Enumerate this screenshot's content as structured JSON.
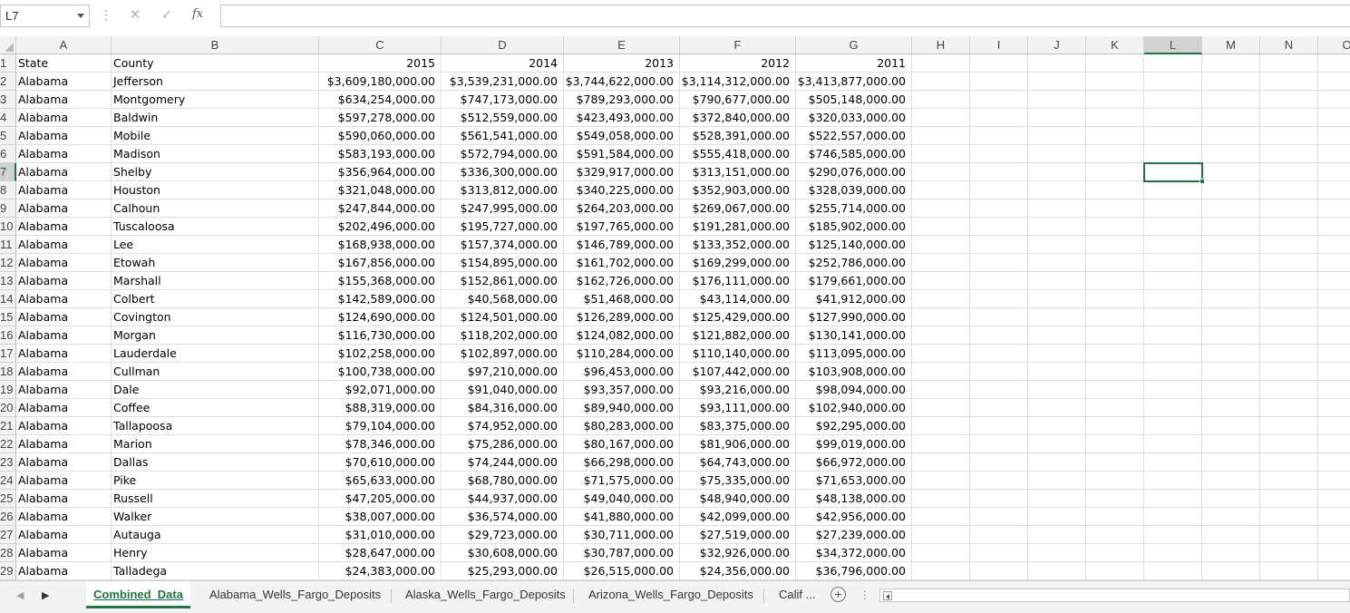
{
  "formula_bar": {
    "name_box": "L7",
    "function_symbol": "fx",
    "formula": ""
  },
  "columns": [
    "A",
    "B",
    "C",
    "D",
    "E",
    "F",
    "G",
    "H",
    "I",
    "J",
    "K",
    "L",
    "M",
    "N",
    "O"
  ],
  "selected_column": "L",
  "selected_row": "7",
  "rows": [
    {
      "n": "1",
      "cells": [
        "State",
        "County",
        "2015",
        "2014",
        "2013",
        "2012",
        "2011"
      ]
    },
    {
      "n": "2",
      "cells": [
        "Alabama",
        "Jefferson",
        "$3,609,180,000.00",
        "$3,539,231,000.00",
        "$3,744,622,000.00",
        "$3,114,312,000.00",
        "$3,413,877,000.00"
      ]
    },
    {
      "n": "3",
      "cells": [
        "Alabama",
        "Montgomery",
        "$634,254,000.00",
        "$747,173,000.00",
        "$789,293,000.00",
        "$790,677,000.00",
        "$505,148,000.00"
      ]
    },
    {
      "n": "4",
      "cells": [
        "Alabama",
        "Baldwin",
        "$597,278,000.00",
        "$512,559,000.00",
        "$423,493,000.00",
        "$372,840,000.00",
        "$320,033,000.00"
      ]
    },
    {
      "n": "5",
      "cells": [
        "Alabama",
        "Mobile",
        "$590,060,000.00",
        "$561,541,000.00",
        "$549,058,000.00",
        "$528,391,000.00",
        "$522,557,000.00"
      ]
    },
    {
      "n": "6",
      "cells": [
        "Alabama",
        "Madison",
        "$583,193,000.00",
        "$572,794,000.00",
        "$591,584,000.00",
        "$555,418,000.00",
        "$746,585,000.00"
      ]
    },
    {
      "n": "7",
      "cells": [
        "Alabama",
        "Shelby",
        "$356,964,000.00",
        "$336,300,000.00",
        "$329,917,000.00",
        "$313,151,000.00",
        "$290,076,000.00"
      ]
    },
    {
      "n": "8",
      "cells": [
        "Alabama",
        "Houston",
        "$321,048,000.00",
        "$313,812,000.00",
        "$340,225,000.00",
        "$352,903,000.00",
        "$328,039,000.00"
      ]
    },
    {
      "n": "9",
      "cells": [
        "Alabama",
        "Calhoun",
        "$247,844,000.00",
        "$247,995,000.00",
        "$264,203,000.00",
        "$269,067,000.00",
        "$255,714,000.00"
      ]
    },
    {
      "n": "10",
      "cells": [
        "Alabama",
        "Tuscaloosa",
        "$202,496,000.00",
        "$195,727,000.00",
        "$197,765,000.00",
        "$191,281,000.00",
        "$185,902,000.00"
      ]
    },
    {
      "n": "11",
      "cells": [
        "Alabama",
        "Lee",
        "$168,938,000.00",
        "$157,374,000.00",
        "$146,789,000.00",
        "$133,352,000.00",
        "$125,140,000.00"
      ]
    },
    {
      "n": "12",
      "cells": [
        "Alabama",
        "Etowah",
        "$167,856,000.00",
        "$154,895,000.00",
        "$161,702,000.00",
        "$169,299,000.00",
        "$252,786,000.00"
      ]
    },
    {
      "n": "13",
      "cells": [
        "Alabama",
        "Marshall",
        "$155,368,000.00",
        "$152,861,000.00",
        "$162,726,000.00",
        "$176,111,000.00",
        "$179,661,000.00"
      ]
    },
    {
      "n": "14",
      "cells": [
        "Alabama",
        "Colbert",
        "$142,589,000.00",
        "$40,568,000.00",
        "$51,468,000.00",
        "$43,114,000.00",
        "$41,912,000.00"
      ]
    },
    {
      "n": "15",
      "cells": [
        "Alabama",
        "Covington",
        "$124,690,000.00",
        "$124,501,000.00",
        "$126,289,000.00",
        "$125,429,000.00",
        "$127,990,000.00"
      ]
    },
    {
      "n": "16",
      "cells": [
        "Alabama",
        "Morgan",
        "$116,730,000.00",
        "$118,202,000.00",
        "$124,082,000.00",
        "$121,882,000.00",
        "$130,141,000.00"
      ]
    },
    {
      "n": "17",
      "cells": [
        "Alabama",
        "Lauderdale",
        "$102,258,000.00",
        "$102,897,000.00",
        "$110,284,000.00",
        "$110,140,000.00",
        "$113,095,000.00"
      ]
    },
    {
      "n": "18",
      "cells": [
        "Alabama",
        "Cullman",
        "$100,738,000.00",
        "$97,210,000.00",
        "$96,453,000.00",
        "$107,442,000.00",
        "$103,908,000.00"
      ]
    },
    {
      "n": "19",
      "cells": [
        "Alabama",
        "Dale",
        "$92,071,000.00",
        "$91,040,000.00",
        "$93,357,000.00",
        "$93,216,000.00",
        "$98,094,000.00"
      ]
    },
    {
      "n": "20",
      "cells": [
        "Alabama",
        "Coffee",
        "$88,319,000.00",
        "$84,316,000.00",
        "$89,940,000.00",
        "$93,111,000.00",
        "$102,940,000.00"
      ]
    },
    {
      "n": "21",
      "cells": [
        "Alabama",
        "Tallapoosa",
        "$79,104,000.00",
        "$74,952,000.00",
        "$80,283,000.00",
        "$83,375,000.00",
        "$92,295,000.00"
      ]
    },
    {
      "n": "22",
      "cells": [
        "Alabama",
        "Marion",
        "$78,346,000.00",
        "$75,286,000.00",
        "$80,167,000.00",
        "$81,906,000.00",
        "$99,019,000.00"
      ]
    },
    {
      "n": "23",
      "cells": [
        "Alabama",
        "Dallas",
        "$70,610,000.00",
        "$74,244,000.00",
        "$66,298,000.00",
        "$64,743,000.00",
        "$66,972,000.00"
      ]
    },
    {
      "n": "24",
      "cells": [
        "Alabama",
        "Pike",
        "$65,633,000.00",
        "$68,780,000.00",
        "$71,575,000.00",
        "$75,335,000.00",
        "$71,653,000.00"
      ]
    },
    {
      "n": "25",
      "cells": [
        "Alabama",
        "Russell",
        "$47,205,000.00",
        "$44,937,000.00",
        "$49,040,000.00",
        "$48,940,000.00",
        "$48,138,000.00"
      ]
    },
    {
      "n": "26",
      "cells": [
        "Alabama",
        "Walker",
        "$38,007,000.00",
        "$36,574,000.00",
        "$41,880,000.00",
        "$42,099,000.00",
        "$42,956,000.00"
      ]
    },
    {
      "n": "27",
      "cells": [
        "Alabama",
        "Autauga",
        "$31,010,000.00",
        "$29,723,000.00",
        "$30,711,000.00",
        "$27,519,000.00",
        "$27,239,000.00"
      ]
    },
    {
      "n": "28",
      "cells": [
        "Alabama",
        "Henry",
        "$28,647,000.00",
        "$30,608,000.00",
        "$30,787,000.00",
        "$32,926,000.00",
        "$34,372,000.00"
      ]
    },
    {
      "n": "29",
      "cells": [
        "Alabama",
        "Talladega",
        "$24,383,000.00",
        "$25,293,000.00",
        "$26,515,000.00",
        "$24,356,000.00",
        "$36,796,000.00"
      ]
    }
  ],
  "sheet_tabs": [
    "Combined_Data",
    "Alabama_Wells_Fargo_Deposits",
    "Alaska_Wells_Fargo_Deposits",
    "Arizona_Wells_Fargo_Deposits",
    "Calif ..."
  ],
  "active_tab": "Combined_Data",
  "add_sheet_symbol": "+",
  "colors": {
    "accent": "#217346",
    "header_bg": "#f3f3f3",
    "grid": "#e1e1e1"
  }
}
